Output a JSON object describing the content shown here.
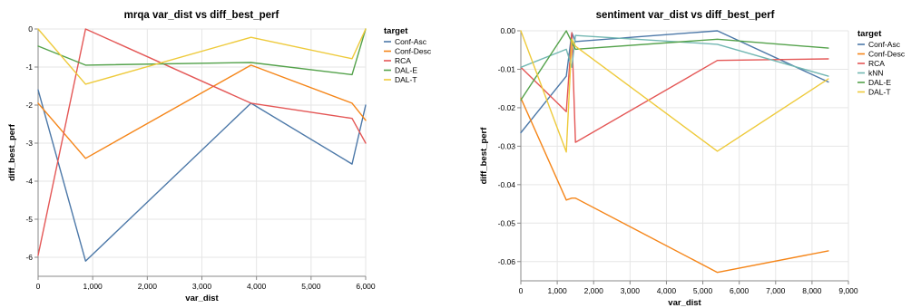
{
  "colors": {
    "Conf-Asc": "#4c78a8",
    "Conf-Desc": "#f58518",
    "RCA": "#e45756",
    "kNN": "#72b7b2",
    "DAL-E": "#54a24b",
    "DAL-T": "#eeca3b"
  },
  "chart_data": [
    {
      "type": "line",
      "title": "mrqa var_dist vs diff_best_perf",
      "xlabel": "var_dist",
      "ylabel": "diff_best_perf",
      "xlim": [
        0,
        6000
      ],
      "ylim": [
        -6.5,
        0
      ],
      "xticks": [
        0,
        1000,
        2000,
        3000,
        4000,
        5000,
        6000
      ],
      "xtick_labels": [
        "0",
        "1,000",
        "2,000",
        "3,000",
        "4,000",
        "5,000",
        "6,000"
      ],
      "yticks": [
        0,
        -1,
        -2,
        -3,
        -4,
        -5,
        -6
      ],
      "ytick_labels": [
        "0",
        "-1",
        "-2",
        "-3",
        "-4",
        "-5",
        "-6"
      ],
      "grid": true,
      "legend_title": "target",
      "legend_position": "right",
      "series": [
        {
          "name": "Conf-Asc",
          "x": [
            0,
            870,
            3900,
            5750,
            6000
          ],
          "y": [
            -1.6,
            -6.1,
            -1.95,
            -3.55,
            -2.0
          ]
        },
        {
          "name": "Conf-Desc",
          "x": [
            0,
            870,
            3900,
            5750,
            6000
          ],
          "y": [
            -1.95,
            -3.4,
            -0.95,
            -1.95,
            -2.4
          ]
        },
        {
          "name": "RCA",
          "x": [
            0,
            870,
            3900,
            5750,
            6000
          ],
          "y": [
            -5.95,
            0.0,
            -1.95,
            -2.35,
            -3.0
          ]
        },
        {
          "name": "DAL-E",
          "x": [
            0,
            870,
            3900,
            5750,
            6000
          ],
          "y": [
            -0.45,
            -0.95,
            -0.88,
            -1.2,
            0.0
          ]
        },
        {
          "name": "DAL-T",
          "x": [
            0,
            870,
            3900,
            5750,
            6000
          ],
          "y": [
            0.0,
            -1.45,
            -0.22,
            -0.78,
            0.0
          ]
        }
      ]
    },
    {
      "type": "line",
      "title": "sentiment var_dist vs diff_best_perf",
      "xlabel": "var_dist",
      "ylabel": "diff_best_perf",
      "xlim": [
        0,
        9000
      ],
      "ylim": [
        -0.065,
        0
      ],
      "xticks": [
        0,
        1000,
        2000,
        3000,
        4000,
        5000,
        6000,
        7000,
        8000,
        9000
      ],
      "xtick_labels": [
        "0",
        "1,000",
        "2,000",
        "3,000",
        "4,000",
        "5,000",
        "6,000",
        "7,000",
        "8,000",
        "9,000"
      ],
      "yticks": [
        0,
        -0.01,
        -0.02,
        -0.03,
        -0.04,
        -0.05,
        -0.06
      ],
      "ytick_labels": [
        "0.00",
        "-0.01",
        "-0.02",
        "-0.03",
        "-0.04",
        "-0.05",
        "-0.06"
      ],
      "grid": true,
      "legend_title": "target",
      "legend_position": "right",
      "series": [
        {
          "name": "Conf-Asc",
          "x": [
            0,
            1250,
            1400,
            1500,
            5400,
            8450
          ],
          "y": [
            -0.0265,
            -0.0118,
            -0.0005,
            -0.0028,
            0.0,
            -0.0133
          ]
        },
        {
          "name": "Conf-Desc",
          "x": [
            0,
            1250,
            1400,
            1500,
            5400,
            8450
          ],
          "y": [
            -0.0175,
            -0.044,
            -0.0435,
            -0.0435,
            -0.0628,
            -0.0572
          ]
        },
        {
          "name": "RCA",
          "x": [
            0,
            1250,
            1400,
            1500,
            5400,
            8450
          ],
          "y": [
            -0.0095,
            -0.021,
            -0.0005,
            -0.029,
            -0.0077,
            -0.0073
          ]
        },
        {
          "name": "kNN",
          "x": [
            0,
            1250,
            1400,
            1500,
            5400,
            8450
          ],
          "y": [
            -0.0095,
            -0.0048,
            -0.0095,
            -0.0012,
            -0.0035,
            -0.0118
          ]
        },
        {
          "name": "DAL-E",
          "x": [
            0,
            1250,
            1400,
            1500,
            5400,
            8450
          ],
          "y": [
            -0.018,
            0.0,
            -0.003,
            -0.0048,
            -0.0022,
            -0.0045
          ]
        },
        {
          "name": "DAL-T",
          "x": [
            0,
            1250,
            1400,
            1500,
            5400,
            8450
          ],
          "y": [
            0.0,
            -0.0315,
            -0.0022,
            -0.004,
            -0.0313,
            -0.0125
          ]
        }
      ]
    }
  ]
}
